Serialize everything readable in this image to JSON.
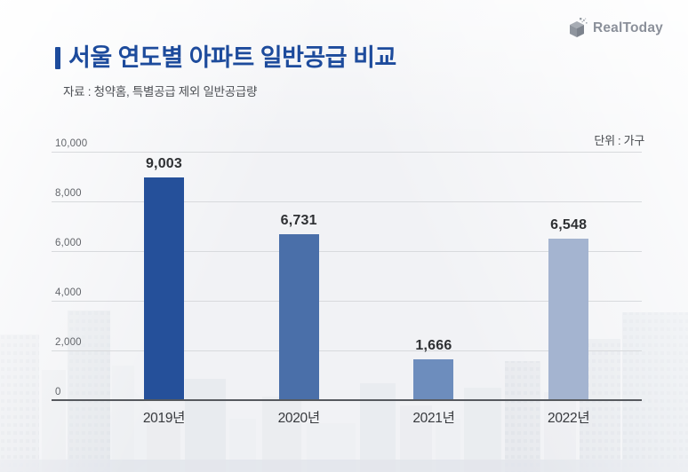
{
  "brand": {
    "name": "RealToday"
  },
  "header": {
    "title": "서울 연도별 아파트 일반공급 비교",
    "subtitle": "자료 : 청약홈, 특별공급 제외 일반공급량"
  },
  "chart": {
    "unit_label": "단위 : 가구"
  },
  "chart_data": {
    "type": "bar",
    "title": "서울 연도별 아파트 일반공급 비교",
    "unit": "가구",
    "xlabel": "",
    "ylabel": "",
    "categories": [
      "2019년",
      "2020년",
      "2021년",
      "2022년"
    ],
    "values": [
      9003,
      6731,
      1666,
      6548
    ],
    "value_labels": [
      "9,003",
      "6,731",
      "1,666",
      "6,548"
    ],
    "bar_colors": [
      "#25509a",
      "#4a6fa9",
      "#6d8dbd",
      "#a4b4d0"
    ],
    "ylim": [
      0,
      10000
    ],
    "yticks": [
      {
        "value": 0,
        "label": "0"
      },
      {
        "value": 2000,
        "label": "2,000"
      },
      {
        "value": 4000,
        "label": "4,000"
      },
      {
        "value": 6000,
        "label": "6,000"
      },
      {
        "value": 8000,
        "label": "8,000"
      },
      {
        "value": 10000,
        "label": "10,000"
      }
    ],
    "grid": true,
    "legend_position": "none"
  }
}
